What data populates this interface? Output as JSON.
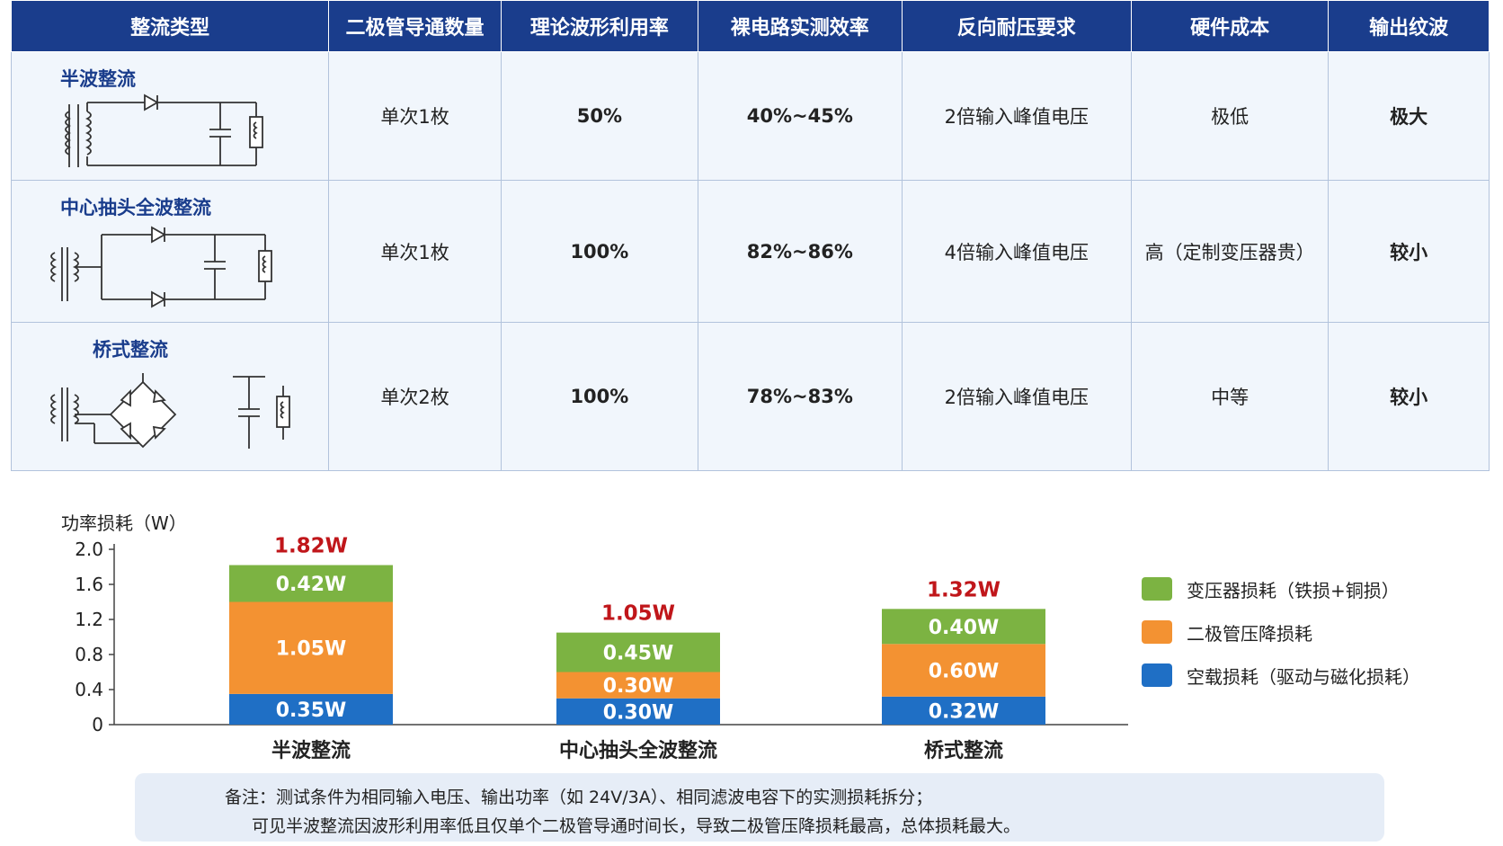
{
  "table": {
    "headers": [
      "整流类型",
      "二极管导通数量",
      "理论波形利用率",
      "裸电路实测效率",
      "反向耐压要求",
      "硬件成本",
      "输出纹波"
    ],
    "rows": [
      {
        "type": "半波整流",
        "diodes": "单次1枚",
        "utilization": "50%",
        "efficiency": "40%~45%",
        "reverse_voltage": "2倍输入峰值电压",
        "cost": "极低",
        "ripple": "极大",
        "ripple_color": "#d0211c"
      },
      {
        "type": "中心抽头全波整流",
        "diodes": "单次1枚",
        "utilization": "100%",
        "efficiency": "82%~86%",
        "reverse_voltage": "4倍输入峰值电压",
        "cost": "高（定制变压器贵）",
        "ripple": "较小",
        "ripple_color": "#6bab2e"
      },
      {
        "type": "桥式整流",
        "diodes": "单次2枚",
        "utilization": "100%",
        "efficiency": "78%~83%",
        "reverse_voltage": "2倍输入峰值电压",
        "cost": "中等",
        "ripple": "较小",
        "ripple_color": "#6bab2e"
      }
    ]
  },
  "chart_data": {
    "type": "bar",
    "stacked": true,
    "ylabel": "功率损耗（W）",
    "ylim": [
      0,
      2.0
    ],
    "yticks": [
      "0",
      "0.4",
      "0.8",
      "1.2",
      "1.6",
      "2.0"
    ],
    "categories": [
      "半波整流",
      "中心抽头全波整流",
      "桥式整流"
    ],
    "series": [
      {
        "name": "空载损耗（驱动与磁化损耗）",
        "color": "#1f6fc5",
        "values": [
          0.35,
          0.3,
          0.32
        ],
        "labels": [
          "0.35W",
          "0.30W",
          "0.32W"
        ]
      },
      {
        "name": "二极管压降损耗",
        "color": "#f39232",
        "values": [
          1.05,
          0.3,
          0.6
        ],
        "labels": [
          "1.05W",
          "0.30W",
          "0.60W"
        ]
      },
      {
        "name": "变压器损耗（铁损+铜损）",
        "color": "#7cb342",
        "values": [
          0.42,
          0.45,
          0.4
        ],
        "labels": [
          "0.42W",
          "0.45W",
          "0.40W"
        ]
      }
    ],
    "totals": [
      "1.82W",
      "1.05W",
      "1.32W"
    ],
    "total_color": "#c0161a",
    "legend_position": "right"
  },
  "note": {
    "line1": "备注：测试条件为相同输入电压、输出功率（如 24V/3A）、相同滤波电容下的实测损耗拆分；",
    "line2": "可见半波整流因波形利用率低且仅单个二极管导通时间长，导致二极管压降损耗最高，总体损耗最大。"
  }
}
